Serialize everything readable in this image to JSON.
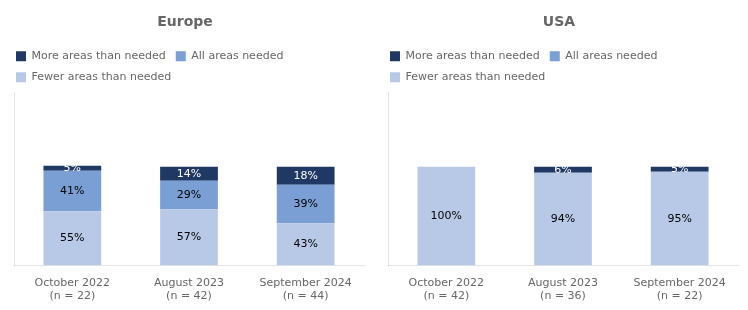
{
  "chart_data": [
    {
      "type": "bar",
      "title": "Europe",
      "categories": [
        "October 2022\n(n = 22)",
        "August 2023\n(n = 42)",
        "September 2024\n(n = 44)"
      ],
      "series": [
        {
          "name": "Fewer areas than needed",
          "color": "#b8c9e8",
          "values": [
            55,
            57,
            43
          ],
          "value_labels": [
            "55%",
            "57%",
            "43%"
          ]
        },
        {
          "name": "All areas needed",
          "color": "#7a9fd4",
          "values": [
            41,
            29,
            39
          ],
          "value_labels": [
            "41%",
            "29%",
            "39%"
          ]
        },
        {
          "name": "More areas than needed",
          "color": "#1f3864",
          "values": [
            5,
            14,
            18
          ],
          "value_labels": [
            "5%",
            "14%",
            "18%"
          ]
        }
      ],
      "stacked": true,
      "data_labels": true,
      "ylim": [
        0,
        175
      ],
      "tick_labels": "x",
      "grid": false,
      "legend": "upper left"
    },
    {
      "type": "bar",
      "title": "USA",
      "categories": [
        "October 2022\n(n = 42)",
        "August 2023\n(n = 36)",
        "September 2024\n(n = 22)"
      ],
      "series": [
        {
          "name": "Fewer areas than needed",
          "color": "#b8c9e8",
          "values": [
            100,
            94,
            95
          ],
          "value_labels": [
            "100%",
            "94%",
            "95%"
          ]
        },
        {
          "name": "All areas needed",
          "color": "#7a9fd4",
          "values": [
            0,
            0,
            0
          ],
          "value_labels": [
            null,
            null,
            null
          ]
        },
        {
          "name": "More areas than needed",
          "color": "#1f3864",
          "values": [
            0,
            6,
            5
          ],
          "value_labels": [
            null,
            "6%",
            "5%"
          ]
        }
      ],
      "stacked": true,
      "data_labels": true,
      "ylim": [
        0,
        175
      ],
      "tick_labels": "x",
      "grid": false,
      "legend": "upper left"
    }
  ]
}
